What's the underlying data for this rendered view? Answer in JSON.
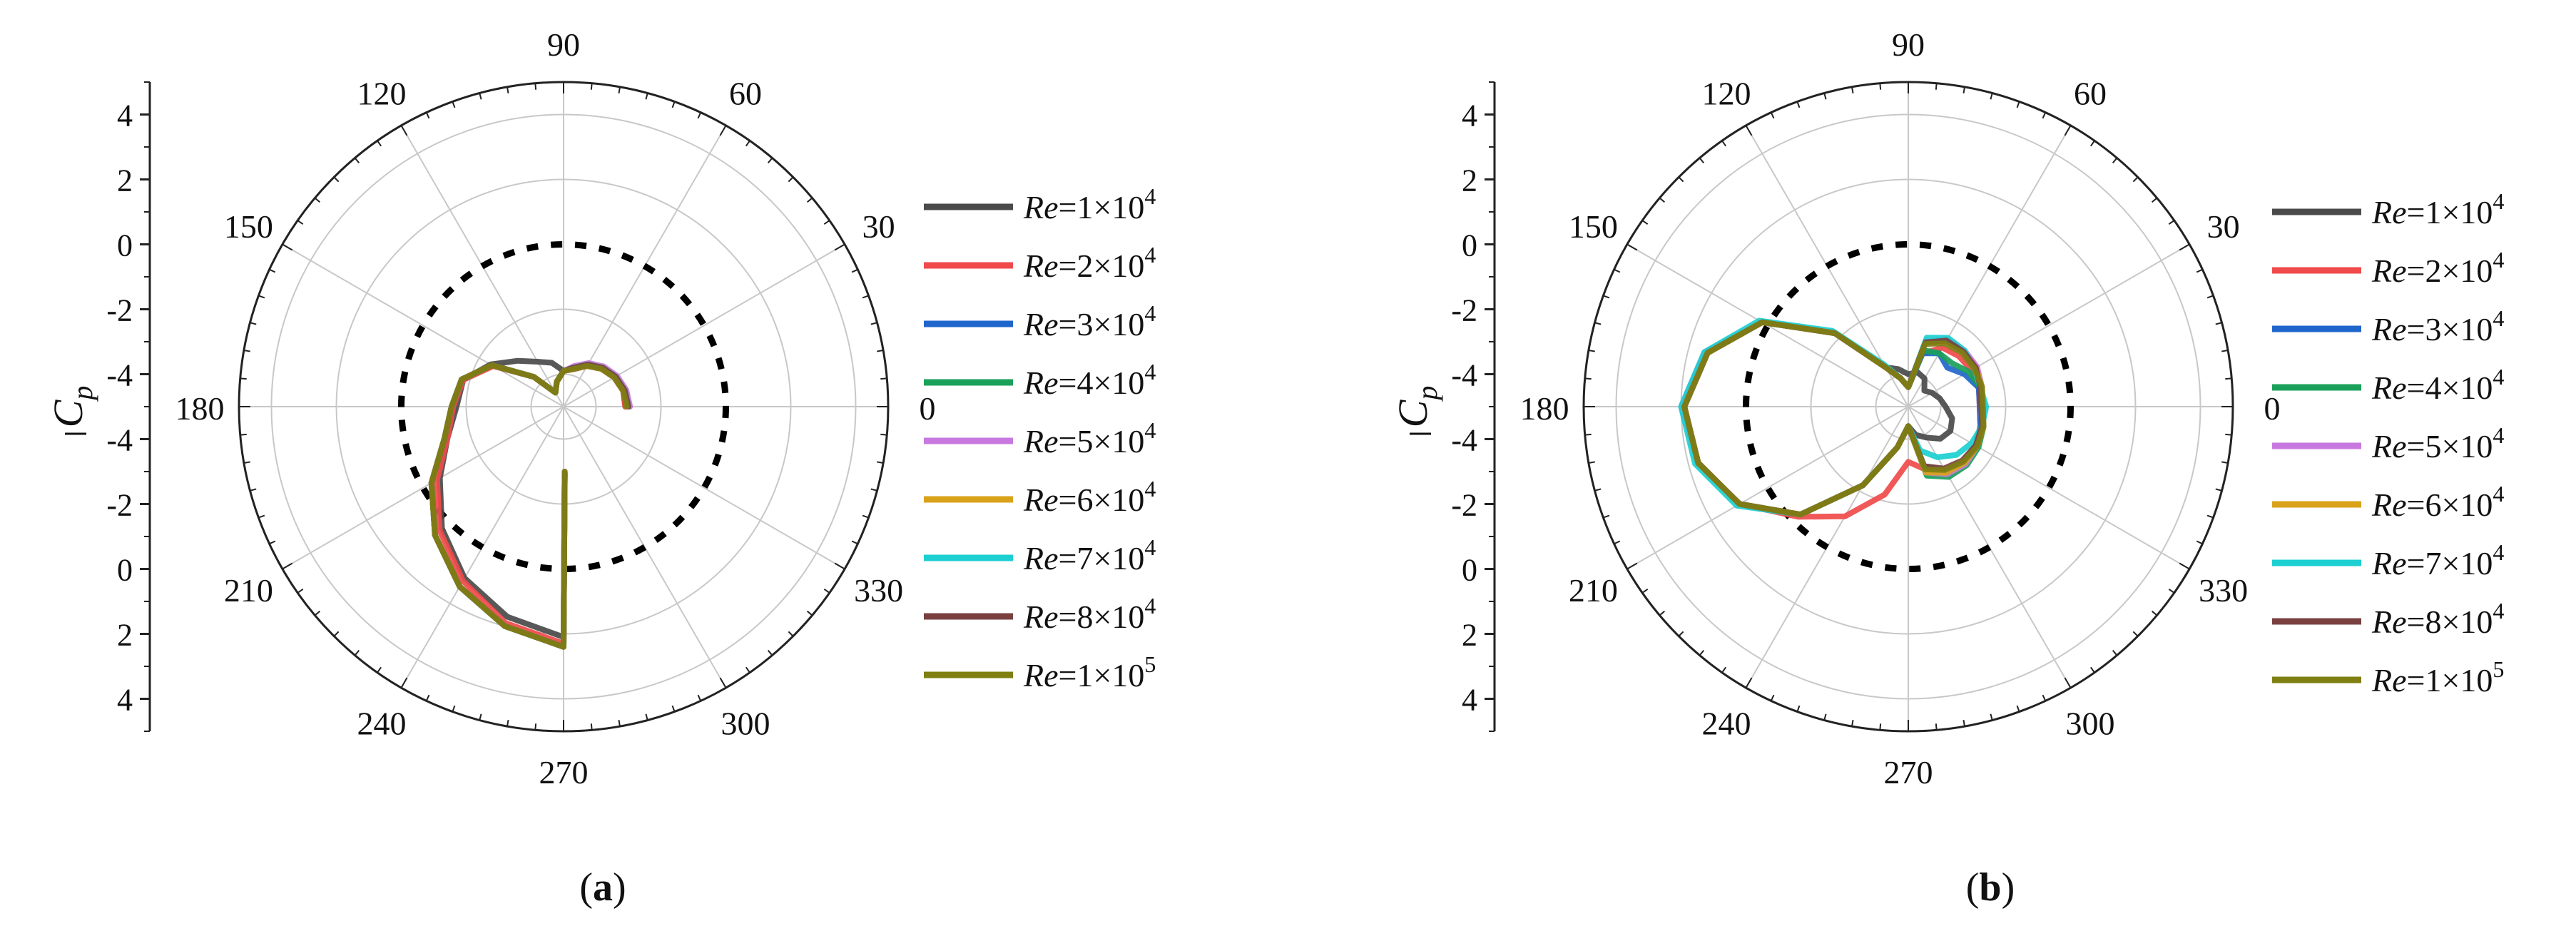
{
  "colors": {
    "re1e4": "#4a4a4a",
    "re2e4": "#f04a4a",
    "re3e4": "#1f66cc",
    "re4e4": "#1aa05a",
    "re5e4": "#c879e0",
    "re6e4": "#d9a21a",
    "re7e4": "#1ccfd0",
    "re8e4": "#7a4040",
    "re1e5": "#7f7f12",
    "reference": "#000000"
  },
  "chart_data": [
    {
      "panel": "a",
      "panel_label": "a",
      "type": "polar-line",
      "angle_labels": [
        "0",
        "30",
        "60",
        "90",
        "120",
        "150",
        "180",
        "210",
        "240",
        "270",
        "300",
        "330"
      ],
      "radial_axis_label_main": "C",
      "radial_axis_label_sub": "p",
      "radial_ticks": [
        "4",
        "2",
        "0",
        "-2",
        "-4",
        "-4",
        "-2",
        "0",
        "2",
        "4"
      ],
      "legend": [
        {
          "base": "=1×10",
          "exp": "4",
          "color_key": "re1e4"
        },
        {
          "base": "=2×10",
          "exp": "4",
          "color_key": "re2e4"
        },
        {
          "base": "=3×10",
          "exp": "4",
          "color_key": "re3e4"
        },
        {
          "base": "=4×10",
          "exp": "4",
          "color_key": "re4e4"
        },
        {
          "base": "=5×10",
          "exp": "4",
          "color_key": "re5e4"
        },
        {
          "base": "=6×10",
          "exp": "4",
          "color_key": "re6e4"
        },
        {
          "base": "=7×10",
          "exp": "4",
          "color_key": "re7e4"
        },
        {
          "base": "=8×10",
          "exp": "4",
          "color_key": "re8e4"
        },
        {
          "base": "=1×10",
          "exp": "5",
          "color_key": "re1e5"
        }
      ],
      "legend_prefix": "Re",
      "reference_circle_cp": 0,
      "r_min_cp": -5,
      "r_max_cp": 5,
      "series": [
        {
          "color_key": "re1e4",
          "theta": [
            0,
            15,
            30,
            45,
            60,
            75,
            90,
            105,
            120,
            135,
            150,
            165,
            180,
            195,
            210,
            225,
            240,
            255,
            270,
            271
          ],
          "cp": [
            -3.1,
            -3.1,
            -3.2,
            -3.35,
            -3.55,
            -3.8,
            -3.9,
            -3.6,
            -3.4,
            -3.0,
            -2.4,
            -1.8,
            -1.7,
            -1.3,
            -0.6,
            0.3,
            1.1,
            1.7,
            2.1,
            -3.0
          ]
        },
        {
          "color_key": "re2e4",
          "theta": [
            0,
            15,
            30,
            45,
            60,
            75,
            90,
            105,
            120,
            135,
            150,
            165,
            180,
            195,
            210,
            225,
            240,
            255,
            270,
            271
          ],
          "cp": [
            -3.1,
            -3.1,
            -3.2,
            -3.35,
            -3.55,
            -3.8,
            -3.9,
            -4.2,
            -4.5,
            -3.7,
            -2.5,
            -1.8,
            -1.6,
            -1.3,
            -0.5,
            0.4,
            1.2,
            1.9,
            2.3,
            -3.0
          ]
        },
        {
          "color_key": "re3e4",
          "theta": [
            0,
            15,
            30,
            45,
            60,
            75,
            90,
            105,
            120,
            135,
            150,
            165,
            180,
            195,
            210,
            225,
            240,
            255,
            270,
            271
          ],
          "cp": [
            -3.0,
            -3.05,
            -3.15,
            -3.3,
            -3.5,
            -3.75,
            -3.9,
            -4.2,
            -4.5,
            -3.7,
            -2.45,
            -1.75,
            -1.55,
            -1.2,
            -0.3,
            0.6,
            1.4,
            2.0,
            2.4,
            -2.95
          ]
        },
        {
          "color_key": "re4e4",
          "theta": [
            0,
            15,
            30,
            45,
            60,
            75,
            90,
            105,
            120,
            135,
            150,
            165,
            180,
            195,
            210,
            225,
            240,
            255,
            270,
            271
          ],
          "cp": [
            -3.0,
            -3.05,
            -3.15,
            -3.3,
            -3.5,
            -3.75,
            -3.9,
            -4.2,
            -4.5,
            -3.7,
            -2.45,
            -1.75,
            -1.55,
            -1.2,
            -0.3,
            0.6,
            1.4,
            2.0,
            2.4,
            -2.95
          ]
        },
        {
          "color_key": "re5e4",
          "theta": [
            0,
            15,
            30,
            45,
            60,
            75,
            90,
            105,
            120,
            135,
            150,
            165,
            180,
            195,
            210,
            225,
            240,
            255,
            270,
            271
          ],
          "cp": [
            -2.95,
            -3.0,
            -3.1,
            -3.25,
            -3.45,
            -3.7,
            -3.9,
            -4.2,
            -4.5,
            -3.7,
            -2.45,
            -1.75,
            -1.55,
            -1.2,
            -0.3,
            0.6,
            1.4,
            2.0,
            2.4,
            -2.9
          ]
        },
        {
          "color_key": "re6e4",
          "theta": [
            0,
            15,
            30,
            45,
            60,
            75,
            90,
            105,
            120,
            135,
            150,
            165,
            180,
            195,
            210,
            225,
            240,
            255,
            270,
            271
          ],
          "cp": [
            -3.0,
            -3.05,
            -3.15,
            -3.3,
            -3.5,
            -3.75,
            -3.9,
            -4.2,
            -4.5,
            -3.7,
            -2.45,
            -1.75,
            -1.55,
            -1.2,
            -0.3,
            0.6,
            1.4,
            2.0,
            2.4,
            -2.95
          ]
        },
        {
          "color_key": "re7e4",
          "theta": [
            0,
            15,
            30,
            45,
            60,
            75,
            90,
            105,
            120,
            135,
            150,
            165,
            180,
            195,
            210,
            225,
            240,
            255,
            270,
            271
          ],
          "cp": [
            -3.0,
            -3.05,
            -3.15,
            -3.3,
            -3.5,
            -3.75,
            -3.9,
            -4.2,
            -4.5,
            -3.7,
            -2.45,
            -1.75,
            -1.55,
            -1.2,
            -0.3,
            0.6,
            1.4,
            2.0,
            2.4,
            -2.95
          ]
        },
        {
          "color_key": "re8e4",
          "theta": [
            0,
            15,
            30,
            45,
            60,
            75,
            90,
            105,
            120,
            135,
            150,
            165,
            180,
            195,
            210,
            225,
            240,
            255,
            270,
            271
          ],
          "cp": [
            -3.0,
            -3.05,
            -3.15,
            -3.3,
            -3.5,
            -3.75,
            -3.9,
            -4.2,
            -4.5,
            -3.7,
            -2.45,
            -1.75,
            -1.55,
            -1.2,
            -0.3,
            0.6,
            1.4,
            2.0,
            2.4,
            -2.95
          ]
        },
        {
          "color_key": "re1e5",
          "theta": [
            0,
            15,
            30,
            45,
            60,
            75,
            90,
            105,
            120,
            135,
            150,
            165,
            180,
            195,
            210,
            225,
            240,
            255,
            270,
            271
          ],
          "cp": [
            -3.05,
            -3.1,
            -3.2,
            -3.35,
            -3.55,
            -3.8,
            -3.9,
            -4.2,
            -4.5,
            -3.7,
            -2.45,
            -1.75,
            -1.55,
            -1.2,
            -0.3,
            0.6,
            1.4,
            2.0,
            2.4,
            -3.0
          ]
        }
      ]
    },
    {
      "panel": "b",
      "panel_label": "b",
      "type": "polar-line",
      "angle_labels": [
        "0",
        "30",
        "60",
        "90",
        "120",
        "150",
        "180",
        "210",
        "240",
        "270",
        "300",
        "330"
      ],
      "radial_axis_label_main": "C",
      "radial_axis_label_sub": "p",
      "radial_ticks": [
        "4",
        "2",
        "0",
        "-2",
        "-4",
        "-4",
        "-2",
        "0",
        "2",
        "4"
      ],
      "legend": [
        {
          "base": "=1×10",
          "exp": "4",
          "color_key": "re1e4"
        },
        {
          "base": "=2×10",
          "exp": "4",
          "color_key": "re2e4"
        },
        {
          "base": "=3×10",
          "exp": "4",
          "color_key": "re3e4"
        },
        {
          "base": "=4×10",
          "exp": "4",
          "color_key": "re4e4"
        },
        {
          "base": "=5×10",
          "exp": "4",
          "color_key": "re5e4"
        },
        {
          "base": "=6×10",
          "exp": "4",
          "color_key": "re6e4"
        },
        {
          "base": "=7×10",
          "exp": "4",
          "color_key": "re7e4"
        },
        {
          "base": "=8×10",
          "exp": "4",
          "color_key": "re8e4"
        },
        {
          "base": "=1×10",
          "exp": "5",
          "color_key": "re1e5"
        }
      ],
      "legend_prefix": "Re",
      "reference_circle_cp": 0,
      "r_min_cp": -5,
      "r_max_cp": 5,
      "series": [
        {
          "color_key": "re1e4",
          "theta": [
            0,
            15,
            30,
            45,
            60,
            75,
            90,
            105,
            120,
            135,
            150,
            165,
            180,
            195,
            210,
            225,
            240,
            255,
            270,
            285,
            300,
            315,
            330,
            345,
            360
          ],
          "cp": [
            -3.85,
            -4.0,
            -4.15,
            -4.3,
            -4.0,
            -3.9,
            -4.0,
            -3.8,
            -3.6,
            -1.8,
            0.2,
            1.4,
            1.9,
            1.7,
            1.0,
            -0.3,
            -2.2,
            -3.7,
            -4.4,
            -4.1,
            -3.9,
            -3.6,
            -3.5,
            -3.6,
            -3.85
          ]
        },
        {
          "color_key": "re2e4",
          "theta": [
            0,
            15,
            30,
            45,
            60,
            75,
            90,
            105,
            120,
            135,
            150,
            165,
            180,
            195,
            210,
            225,
            240,
            255,
            270,
            285,
            300,
            315,
            330,
            345,
            360
          ],
          "cp": [
            -2.8,
            -2.75,
            -2.75,
            -2.8,
            -2.9,
            -3.3,
            -4.4,
            -4.1,
            -3.6,
            -1.8,
            0.2,
            1.4,
            1.9,
            1.7,
            1.0,
            -0.2,
            -1.1,
            -2.2,
            -3.3,
            -3.0,
            -2.7,
            -2.6,
            -2.6,
            -2.7,
            -2.8
          ]
        },
        {
          "color_key": "re3e4",
          "theta": [
            0,
            15,
            30,
            45,
            60,
            75,
            90,
            105,
            120,
            135,
            150,
            165,
            180,
            195,
            210,
            225,
            240,
            255,
            270,
            285,
            300,
            315,
            330,
            345,
            360
          ],
          "cp": [
            -2.8,
            -2.75,
            -3.0,
            -3.3,
            -3.1,
            -3.3,
            -4.4,
            -4.1,
            -3.6,
            -1.8,
            0.2,
            1.4,
            1.9,
            1.7,
            1.0,
            -0.3,
            -2.2,
            -3.7,
            -4.4,
            -3.1,
            -2.75,
            -2.6,
            -2.6,
            -2.7,
            -2.8
          ]
        },
        {
          "color_key": "re4e4",
          "theta": [
            0,
            15,
            30,
            45,
            60,
            75,
            90,
            105,
            120,
            135,
            150,
            165,
            180,
            195,
            210,
            225,
            240,
            255,
            270,
            285,
            300,
            315,
            330,
            345,
            360
          ],
          "cp": [
            -2.75,
            -2.7,
            -2.85,
            -3.1,
            -3.1,
            -3.2,
            -4.4,
            -4.1,
            -3.6,
            -1.8,
            0.2,
            1.4,
            1.9,
            1.7,
            1.0,
            -0.3,
            -2.2,
            -3.7,
            -4.4,
            -2.8,
            -2.5,
            -2.45,
            -2.5,
            -2.6,
            -2.75
          ]
        },
        {
          "color_key": "re5e4",
          "theta": [
            0,
            15,
            30,
            45,
            60,
            75,
            90,
            105,
            120,
            135,
            150,
            165,
            180,
            195,
            210,
            225,
            240,
            255,
            270,
            285,
            300,
            315,
            330,
            345,
            360
          ],
          "cp": [
            -2.75,
            -2.65,
            -2.55,
            -2.55,
            -2.6,
            -2.9,
            -4.4,
            -4.1,
            -3.6,
            -1.8,
            0.2,
            1.5,
            2.0,
            1.7,
            1.0,
            -0.3,
            -2.2,
            -3.7,
            -4.4,
            -2.9,
            -2.6,
            -2.5,
            -2.55,
            -2.65,
            -2.75
          ]
        },
        {
          "color_key": "re6e4",
          "theta": [
            0,
            15,
            30,
            45,
            60,
            75,
            90,
            105,
            120,
            135,
            150,
            165,
            180,
            195,
            210,
            225,
            240,
            255,
            270,
            285,
            300,
            315,
            330,
            345,
            360
          ],
          "cp": [
            -2.7,
            -2.65,
            -2.6,
            -2.6,
            -2.65,
            -2.95,
            -4.4,
            -4.1,
            -3.6,
            -1.8,
            0.2,
            1.4,
            1.9,
            1.7,
            1.0,
            -0.3,
            -2.2,
            -3.7,
            -4.4,
            -2.9,
            -2.65,
            -2.55,
            -2.55,
            -2.6,
            -2.7
          ]
        },
        {
          "color_key": "re7e4",
          "theta": [
            0,
            15,
            30,
            45,
            60,
            75,
            90,
            105,
            120,
            135,
            150,
            165,
            180,
            195,
            210,
            225,
            240,
            255,
            270,
            285,
            300,
            315,
            330,
            345,
            360
          ],
          "cp": [
            -2.6,
            -2.7,
            -2.65,
            -2.55,
            -2.55,
            -2.8,
            -4.4,
            -4.1,
            -3.5,
            -1.7,
            0.3,
            1.5,
            2.0,
            1.8,
            1.1,
            -0.3,
            -2.2,
            -3.7,
            -4.4,
            -3.6,
            -3.2,
            -2.9,
            -2.75,
            -2.65,
            -2.6
          ]
        },
        {
          "color_key": "re8e4",
          "theta": [
            0,
            15,
            30,
            45,
            60,
            75,
            90,
            105,
            120,
            135,
            150,
            165,
            180,
            195,
            210,
            225,
            240,
            255,
            270,
            285,
            300,
            315,
            330,
            345,
            360
          ],
          "cp": [
            -2.75,
            -2.7,
            -2.6,
            -2.6,
            -2.65,
            -2.95,
            -4.4,
            -4.1,
            -3.6,
            -1.8,
            0.2,
            1.4,
            1.9,
            1.7,
            1.0,
            -0.3,
            -2.2,
            -3.7,
            -4.4,
            -3.1,
            -2.8,
            -2.65,
            -2.6,
            -2.65,
            -2.75
          ]
        },
        {
          "color_key": "re1e5",
          "theta": [
            0,
            15,
            30,
            45,
            60,
            75,
            90,
            105,
            120,
            135,
            150,
            165,
            180,
            195,
            210,
            225,
            240,
            255,
            270,
            285,
            300,
            315,
            330,
            345,
            360
          ],
          "cp": [
            -2.7,
            -2.65,
            -2.65,
            -2.65,
            -2.75,
            -3.0,
            -4.4,
            -4.1,
            -3.6,
            -1.8,
            0.2,
            1.4,
            1.9,
            1.7,
            1.0,
            -0.3,
            -2.2,
            -3.7,
            -4.4,
            -3.0,
            -2.75,
            -2.6,
            -2.55,
            -2.6,
            -2.7
          ]
        }
      ]
    }
  ]
}
